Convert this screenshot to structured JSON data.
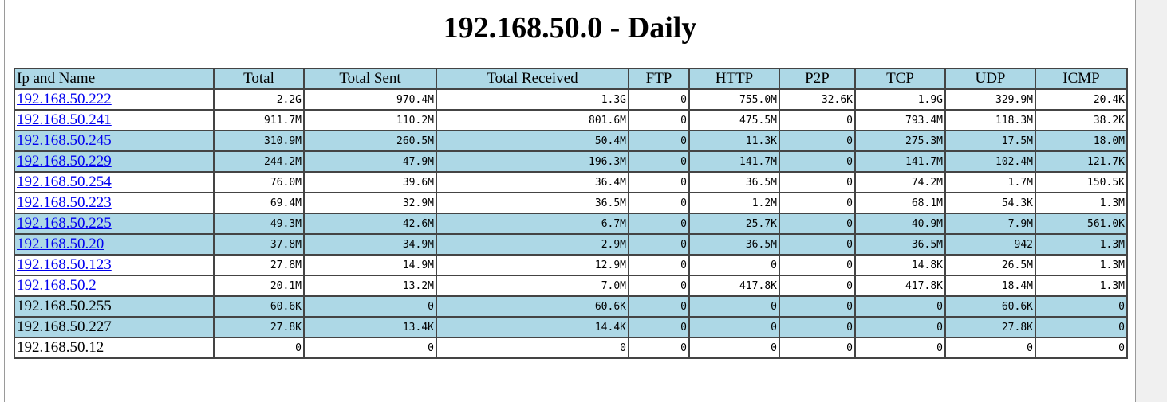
{
  "page": {
    "title": "192.168.50.0 - Daily"
  },
  "table": {
    "headers": [
      "Ip and Name",
      "Total",
      "Total Sent",
      "Total Received",
      "FTP",
      "HTTP",
      "P2P",
      "TCP",
      "UDP",
      "ICMP"
    ],
    "rows": [
      {
        "ip": "192.168.50.222",
        "link": true,
        "shaded": false,
        "values": [
          "2.2G",
          "970.4M",
          "1.3G",
          "0",
          "755.0M",
          "32.6K",
          "1.9G",
          "329.9M",
          "20.4K"
        ]
      },
      {
        "ip": "192.168.50.241",
        "link": true,
        "shaded": false,
        "values": [
          "911.7M",
          "110.2M",
          "801.6M",
          "0",
          "475.5M",
          "0",
          "793.4M",
          "118.3M",
          "38.2K"
        ]
      },
      {
        "ip": "192.168.50.245",
        "link": true,
        "shaded": true,
        "values": [
          "310.9M",
          "260.5M",
          "50.4M",
          "0",
          "11.3K",
          "0",
          "275.3M",
          "17.5M",
          "18.0M"
        ]
      },
      {
        "ip": "192.168.50.229",
        "link": true,
        "shaded": true,
        "values": [
          "244.2M",
          "47.9M",
          "196.3M",
          "0",
          "141.7M",
          "0",
          "141.7M",
          "102.4M",
          "121.7K"
        ]
      },
      {
        "ip": "192.168.50.254",
        "link": true,
        "shaded": false,
        "values": [
          "76.0M",
          "39.6M",
          "36.4M",
          "0",
          "36.5M",
          "0",
          "74.2M",
          "1.7M",
          "150.5K"
        ]
      },
      {
        "ip": "192.168.50.223",
        "link": true,
        "shaded": false,
        "values": [
          "69.4M",
          "32.9M",
          "36.5M",
          "0",
          "1.2M",
          "0",
          "68.1M",
          "54.3K",
          "1.3M"
        ]
      },
      {
        "ip": "192.168.50.225",
        "link": true,
        "shaded": true,
        "values": [
          "49.3M",
          "42.6M",
          "6.7M",
          "0",
          "25.7K",
          "0",
          "40.9M",
          "7.9M",
          "561.0K"
        ]
      },
      {
        "ip": "192.168.50.20",
        "link": true,
        "shaded": true,
        "values": [
          "37.8M",
          "34.9M",
          "2.9M",
          "0",
          "36.5M",
          "0",
          "36.5M",
          "942",
          "1.3M"
        ]
      },
      {
        "ip": "192.168.50.123",
        "link": true,
        "shaded": false,
        "values": [
          "27.8M",
          "14.9M",
          "12.9M",
          "0",
          "0",
          "0",
          "14.8K",
          "26.5M",
          "1.3M"
        ]
      },
      {
        "ip": "192.168.50.2",
        "link": true,
        "shaded": false,
        "values": [
          "20.1M",
          "13.2M",
          "7.0M",
          "0",
          "417.8K",
          "0",
          "417.8K",
          "18.4M",
          "1.3M"
        ]
      },
      {
        "ip": "192.168.50.255",
        "link": false,
        "shaded": true,
        "values": [
          "60.6K",
          "0",
          "60.6K",
          "0",
          "0",
          "0",
          "0",
          "60.6K",
          "0"
        ]
      },
      {
        "ip": "192.168.50.227",
        "link": false,
        "shaded": true,
        "values": [
          "27.8K",
          "13.4K",
          "14.4K",
          "0",
          "0",
          "0",
          "0",
          "27.8K",
          "0"
        ]
      },
      {
        "ip": "192.168.50.12",
        "link": false,
        "shaded": false,
        "values": [
          "0",
          "0",
          "0",
          "0",
          "0",
          "0",
          "0",
          "0",
          "0"
        ]
      }
    ]
  },
  "colors": {
    "header_bg": "#add8e6",
    "shaded_row_bg": "#add8e6",
    "link": "#0000ee",
    "border": "#444444"
  }
}
